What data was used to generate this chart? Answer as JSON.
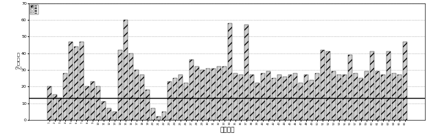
{
  "title": "",
  "xlabel": "ウシ唾液",
  "ylabel": "抑\n制\n率\n(%)",
  "ylim": [
    0,
    70
  ],
  "yticks": [
    0,
    10,
    20,
    30,
    40,
    50,
    60,
    70
  ],
  "hline_y": 13,
  "bar_color": "#d0d0d0",
  "bar_edgecolor": "#000000",
  "hatch": "///",
  "background_color": "#ffffff",
  "values": [
    20,
    15,
    13,
    28,
    47,
    44,
    47,
    20,
    23,
    20,
    11,
    7,
    5,
    42,
    60,
    40,
    30,
    27,
    18,
    7,
    2,
    5,
    23,
    25,
    27,
    22,
    36,
    32,
    30,
    31,
    31,
    32,
    32,
    58,
    28,
    27,
    57,
    27,
    22,
    28,
    29,
    25,
    27,
    26,
    27,
    28,
    22,
    27,
    24,
    28,
    42,
    41,
    29,
    27,
    27,
    39,
    28,
    25,
    29,
    41,
    29,
    27,
    41,
    28,
    27,
    47
  ],
  "xlabels": [
    "1",
    "2",
    "3",
    "4",
    "5",
    "6",
    "7",
    "8",
    "9",
    "10",
    "11",
    "12",
    "13",
    "14",
    "15",
    "16",
    "17",
    "18",
    "19",
    "20",
    "21",
    "22",
    "23",
    "24",
    "25",
    "26",
    "27",
    "28",
    "29",
    "30",
    "31",
    "32",
    "33",
    "34",
    "35",
    "36",
    "37",
    "38",
    "39",
    "40",
    "41",
    "42",
    "43",
    "44",
    "45",
    "46",
    "47",
    "48",
    "49",
    "50",
    "51",
    "52",
    "53",
    "54",
    "55",
    "56",
    "57",
    "58",
    "59",
    "60",
    "61",
    "62",
    "63",
    "64",
    "65",
    "66"
  ],
  "legend_labels": [
    "陽性",
    "陰性",
    "境界"
  ]
}
